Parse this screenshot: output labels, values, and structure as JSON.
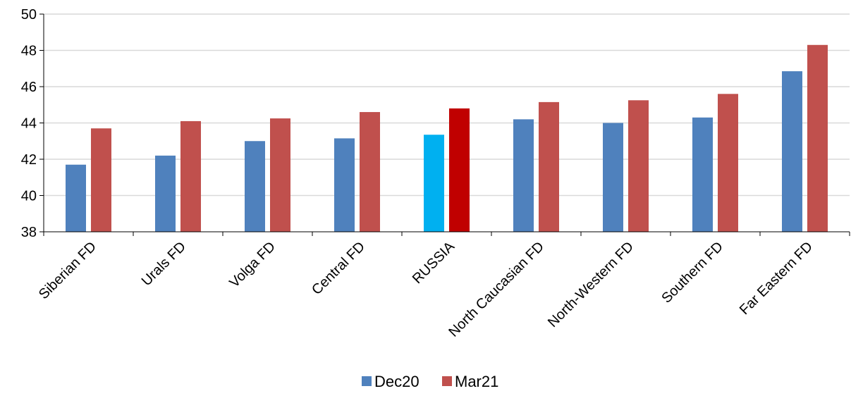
{
  "chart_data": {
    "type": "bar",
    "categories": [
      "Siberian FD",
      "Urals FD",
      "Volga FD",
      "Central FD",
      "RUSSIA",
      "North Caucasian FD",
      "North-Western FD",
      "Southern FD",
      "Far Eastern FD"
    ],
    "series": [
      {
        "name": "Dec20",
        "color": "#4F81BD",
        "highlight_color": "#00B0F0",
        "values": [
          41.7,
          42.2,
          43.0,
          43.15,
          43.35,
          44.2,
          44.0,
          44.3,
          46.85
        ]
      },
      {
        "name": "Mar21",
        "color": "#C0504D",
        "highlight_color": "#C00000",
        "values": [
          43.7,
          44.1,
          44.25,
          44.6,
          44.8,
          45.15,
          45.25,
          45.6,
          48.3
        ]
      }
    ],
    "highlight_category": "RUSSIA",
    "yticks": [
      "38",
      "40",
      "42",
      "44",
      "46",
      "48",
      "50"
    ],
    "ylim": [
      38,
      50
    ],
    "grid": true,
    "legend_position": "bottom"
  }
}
